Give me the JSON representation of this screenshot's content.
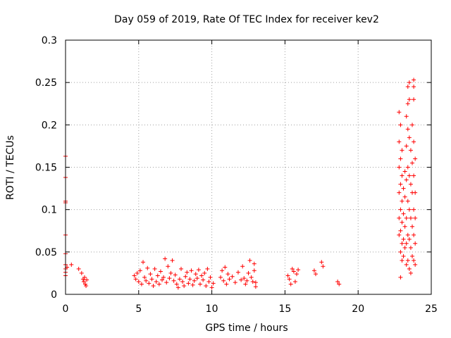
{
  "chart_data": {
    "type": "scatter",
    "title": "Day 059 of 2019, Rate Of TEC Index for receiver kev2",
    "xlabel": "GPS time / hours",
    "ylabel": "ROTI / TECUs",
    "xlim": [
      0,
      25
    ],
    "ylim": [
      0,
      0.3
    ],
    "x_ticks": [
      0,
      5,
      10,
      15,
      20,
      25
    ],
    "x_tick_labels": [
      "0",
      "5",
      "10",
      "15",
      "20",
      "25"
    ],
    "y_ticks": [
      0,
      0.05,
      0.1,
      0.15,
      0.2,
      0.25,
      0.3
    ],
    "y_tick_labels": [
      "0",
      "0.05",
      "0.1",
      "0.15",
      "0.2",
      "0.25",
      "0.3"
    ],
    "grid": true,
    "marker": "plus",
    "color": "#ff0000",
    "series": [
      {
        "points": [
          [
            0.0,
            0.163
          ],
          [
            0.0,
            0.138
          ],
          [
            0.0,
            0.11
          ],
          [
            0.0,
            0.108
          ],
          [
            0.0,
            0.07
          ],
          [
            0.0,
            0.048
          ],
          [
            0.0,
            0.035
          ],
          [
            0.0,
            0.03
          ],
          [
            0.0,
            0.026
          ],
          [
            0.0,
            0.022
          ],
          [
            0.1,
            0.032
          ],
          [
            0.4,
            0.035
          ],
          [
            0.9,
            0.03
          ],
          [
            1.1,
            0.025
          ],
          [
            1.2,
            0.018
          ],
          [
            1.25,
            0.015
          ],
          [
            1.3,
            0.02
          ],
          [
            1.35,
            0.012
          ],
          [
            1.4,
            0.01
          ],
          [
            1.45,
            0.017
          ],
          [
            4.7,
            0.022
          ],
          [
            4.8,
            0.018
          ],
          [
            4.9,
            0.025
          ],
          [
            5.0,
            0.015
          ],
          [
            5.1,
            0.028
          ],
          [
            5.2,
            0.012
          ],
          [
            5.3,
            0.038
          ],
          [
            5.4,
            0.02
          ],
          [
            5.5,
            0.016
          ],
          [
            5.6,
            0.031
          ],
          [
            5.7,
            0.013
          ],
          [
            5.8,
            0.024
          ],
          [
            5.9,
            0.018
          ],
          [
            6.0,
            0.01
          ],
          [
            6.1,
            0.03
          ],
          [
            6.2,
            0.015
          ],
          [
            6.3,
            0.022
          ],
          [
            6.4,
            0.012
          ],
          [
            6.5,
            0.027
          ],
          [
            6.6,
            0.017
          ],
          [
            6.7,
            0.02
          ],
          [
            6.8,
            0.042
          ],
          [
            6.9,
            0.014
          ],
          [
            7.0,
            0.033
          ],
          [
            7.1,
            0.019
          ],
          [
            7.2,
            0.025
          ],
          [
            7.3,
            0.04
          ],
          [
            7.4,
            0.016
          ],
          [
            7.5,
            0.023
          ],
          [
            7.6,
            0.012
          ],
          [
            7.7,
            0.008
          ],
          [
            7.8,
            0.018
          ],
          [
            7.9,
            0.03
          ],
          [
            8.0,
            0.015
          ],
          [
            8.1,
            0.01
          ],
          [
            8.2,
            0.021
          ],
          [
            8.3,
            0.026
          ],
          [
            8.4,
            0.013
          ],
          [
            8.5,
            0.018
          ],
          [
            8.6,
            0.028
          ],
          [
            8.7,
            0.011
          ],
          [
            8.8,
            0.016
          ],
          [
            8.9,
            0.024
          ],
          [
            9.0,
            0.019
          ],
          [
            9.1,
            0.029
          ],
          [
            9.2,
            0.012
          ],
          [
            9.3,
            0.022
          ],
          [
            9.4,
            0.017
          ],
          [
            9.5,
            0.025
          ],
          [
            9.6,
            0.01
          ],
          [
            9.7,
            0.03
          ],
          [
            9.8,
            0.015
          ],
          [
            9.9,
            0.02
          ],
          [
            10.0,
            0.008
          ],
          [
            10.1,
            0.013
          ],
          [
            10.6,
            0.02
          ],
          [
            10.7,
            0.028
          ],
          [
            10.8,
            0.016
          ],
          [
            10.9,
            0.032
          ],
          [
            11.0,
            0.012
          ],
          [
            11.1,
            0.024
          ],
          [
            11.2,
            0.018
          ],
          [
            11.4,
            0.021
          ],
          [
            11.6,
            0.014
          ],
          [
            11.8,
            0.026
          ],
          [
            12.0,
            0.017
          ],
          [
            12.1,
            0.033
          ],
          [
            12.2,
            0.019
          ],
          [
            12.3,
            0.012
          ],
          [
            12.4,
            0.016
          ],
          [
            12.5,
            0.025
          ],
          [
            12.6,
            0.04
          ],
          [
            12.7,
            0.02
          ],
          [
            12.8,
            0.015
          ],
          [
            12.9,
            0.036
          ],
          [
            12.9,
            0.028
          ],
          [
            13.0,
            0.014
          ],
          [
            13.0,
            0.009
          ],
          [
            15.2,
            0.022
          ],
          [
            15.3,
            0.018
          ],
          [
            15.4,
            0.012
          ],
          [
            15.5,
            0.03
          ],
          [
            15.6,
            0.027
          ],
          [
            15.7,
            0.015
          ],
          [
            15.8,
            0.024
          ],
          [
            15.9,
            0.029
          ],
          [
            17.0,
            0.028
          ],
          [
            17.1,
            0.024
          ],
          [
            17.5,
            0.038
          ],
          [
            17.6,
            0.033
          ],
          [
            18.6,
            0.015
          ],
          [
            18.7,
            0.012
          ],
          [
            22.8,
            0.215
          ],
          [
            22.8,
            0.18
          ],
          [
            22.8,
            0.15
          ],
          [
            22.8,
            0.12
          ],
          [
            22.8,
            0.09
          ],
          [
            22.8,
            0.07
          ],
          [
            22.9,
            0.2
          ],
          [
            22.9,
            0.16
          ],
          [
            22.9,
            0.13
          ],
          [
            22.9,
            0.1
          ],
          [
            22.9,
            0.075
          ],
          [
            22.9,
            0.05
          ],
          [
            23.0,
            0.17
          ],
          [
            23.0,
            0.14
          ],
          [
            23.0,
            0.11
          ],
          [
            23.0,
            0.085
          ],
          [
            23.0,
            0.06
          ],
          [
            23.0,
            0.04
          ],
          [
            23.1,
            0.125
          ],
          [
            23.1,
            0.095
          ],
          [
            23.1,
            0.065
          ],
          [
            23.1,
            0.045
          ],
          [
            23.2,
            0.145
          ],
          [
            23.2,
            0.115
          ],
          [
            23.2,
            0.08
          ],
          [
            23.2,
            0.055
          ],
          [
            23.3,
            0.21
          ],
          [
            23.3,
            0.175
          ],
          [
            23.3,
            0.135
          ],
          [
            23.3,
            0.09
          ],
          [
            23.3,
            0.06
          ],
          [
            23.3,
            0.035
          ],
          [
            23.4,
            0.245
          ],
          [
            23.4,
            0.225
          ],
          [
            23.4,
            0.195
          ],
          [
            23.4,
            0.15
          ],
          [
            23.4,
            0.11
          ],
          [
            23.4,
            0.07
          ],
          [
            23.4,
            0.04
          ],
          [
            23.5,
            0.25
          ],
          [
            23.5,
            0.23
          ],
          [
            23.5,
            0.185
          ],
          [
            23.5,
            0.14
          ],
          [
            23.5,
            0.1
          ],
          [
            23.5,
            0.065
          ],
          [
            23.5,
            0.03
          ],
          [
            23.6,
            0.17
          ],
          [
            23.6,
            0.13
          ],
          [
            23.6,
            0.09
          ],
          [
            23.6,
            0.055
          ],
          [
            23.7,
            0.2
          ],
          [
            23.7,
            0.155
          ],
          [
            23.7,
            0.12
          ],
          [
            23.7,
            0.08
          ],
          [
            23.7,
            0.045
          ],
          [
            23.8,
            0.253
          ],
          [
            23.8,
            0.245
          ],
          [
            23.8,
            0.23
          ],
          [
            23.8,
            0.18
          ],
          [
            23.8,
            0.14
          ],
          [
            23.8,
            0.1
          ],
          [
            23.8,
            0.07
          ],
          [
            23.8,
            0.04
          ],
          [
            23.9,
            0.16
          ],
          [
            23.9,
            0.12
          ],
          [
            23.9,
            0.09
          ],
          [
            23.9,
            0.06
          ],
          [
            23.9,
            0.035
          ],
          [
            22.9,
            0.02
          ],
          [
            23.6,
            0.025
          ]
        ]
      }
    ]
  }
}
